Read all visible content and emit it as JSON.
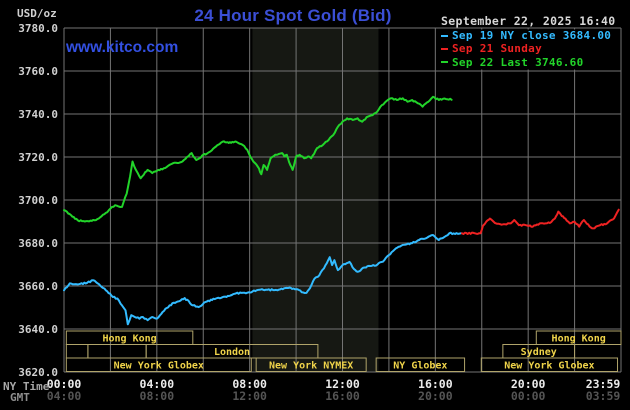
{
  "header": {
    "title": "24 Hour Spot Gold (Bid)",
    "watermark": "www.kitco.com",
    "timestamp": "September 22, 2025 16:40",
    "unit_label": "USD/oz"
  },
  "colors": {
    "background": "#000000",
    "title_blue": "#3b4fd6",
    "watermark_blue": "#3350e2",
    "timestamp_gray": "#d8d8d8",
    "grid_gray": "#747474",
    "nymex_band": "#161813",
    "session_border": "#b0a46a",
    "session_text": "#f0d44a",
    "prev_close_cyan": "#33bbff",
    "sunday_red": "#ee2222",
    "last_green": "#22d42a"
  },
  "legend": {
    "items": [
      {
        "text": "Sep 19 NY close 3684.00",
        "color": "#33bbff"
      },
      {
        "text": "Sep 21 Sunday",
        "color": "#ee2222"
      },
      {
        "text": "Sep 22 Last 3746.60",
        "color": "#22d42a"
      }
    ]
  },
  "axes": {
    "y_unit": "USD/oz",
    "y_tick_labels": [
      "3780.0",
      "3760.0",
      "3740.0",
      "3720.0",
      "3700.0",
      "3680.0",
      "3660.0",
      "3640.0",
      "3620.0"
    ],
    "ny_time_label": "NY Time",
    "ny_time_ticks": [
      "00:00",
      "04:00",
      "08:00",
      "12:00",
      "16:00",
      "20:00",
      "23:59"
    ],
    "gmt_label": "GMT",
    "gmt_ticks": [
      "04:00",
      "08:00",
      "12:00",
      "16:00",
      "20:00",
      "00:00",
      "03:59"
    ]
  },
  "sessions": [
    {
      "row": 0,
      "label": "Hong Kong",
      "start": 0.1,
      "end": 5.55
    },
    {
      "row": 0,
      "label": "Hong Kong",
      "start": 20.35,
      "end": 24.0
    },
    {
      "row": 1,
      "label": "",
      "start": 0.1,
      "end": 1.03
    },
    {
      "row": 1,
      "label": "",
      "start": 1.03,
      "end": 3.54
    },
    {
      "row": 1,
      "label": "London",
      "start": 3.54,
      "end": 10.94
    },
    {
      "row": 1,
      "label": "Sydney",
      "start": 18.91,
      "end": 22.0
    },
    {
      "row": 2,
      "label": "New York Globex",
      "start": 0.1,
      "end": 8.07
    },
    {
      "row": 2,
      "label": "New York NYMEX",
      "start": 8.28,
      "end": 13.02
    },
    {
      "row": 2,
      "label": "NY Globex",
      "start": 13.45,
      "end": 17.26
    },
    {
      "row": 2,
      "label": "New York Globex",
      "start": 17.98,
      "end": 23.85
    }
  ],
  "chart_data": {
    "type": "line",
    "title": "24 Hour Spot Gold (Bid)",
    "xlabel": "NY Time",
    "ylabel": "USD/oz",
    "xlim_hours": [
      0,
      24
    ],
    "ylim": [
      3620,
      3780
    ],
    "y_tick_step": 20,
    "x_gridline_step_hours": 2,
    "grid": true,
    "legend_position": "top-right",
    "nymex_band_hours": [
      8.12,
      13.55
    ],
    "series": [
      {
        "name": "Sep 19 NY close 3684.00",
        "color": "#33bbff",
        "points": [
          [
            0.0,
            3658
          ],
          [
            0.25,
            3661.2
          ],
          [
            0.7,
            3661
          ],
          [
            1.0,
            3661.5
          ],
          [
            1.25,
            3662.7
          ],
          [
            1.45,
            3661.2
          ],
          [
            1.8,
            3658
          ],
          [
            2.1,
            3654.9
          ],
          [
            2.3,
            3654.2
          ],
          [
            2.5,
            3651
          ],
          [
            2.65,
            3648.7
          ],
          [
            2.75,
            3642.2
          ],
          [
            2.9,
            3646.4
          ],
          [
            3.05,
            3645.6
          ],
          [
            3.25,
            3644.8
          ],
          [
            3.4,
            3645.6
          ],
          [
            3.6,
            3644.1
          ],
          [
            3.8,
            3645.6
          ],
          [
            4.0,
            3644.8
          ],
          [
            4.25,
            3647.9
          ],
          [
            4.55,
            3651
          ],
          [
            4.85,
            3652.6
          ],
          [
            5.2,
            3654.4
          ],
          [
            5.55,
            3651
          ],
          [
            5.8,
            3650.2
          ],
          [
            6.1,
            3652.6
          ],
          [
            6.55,
            3654.2
          ],
          [
            7.0,
            3654.9
          ],
          [
            7.4,
            3656.5
          ],
          [
            7.9,
            3656.9
          ],
          [
            8.3,
            3658
          ],
          [
            8.7,
            3658.3
          ],
          [
            9.2,
            3658
          ],
          [
            9.6,
            3659.1
          ],
          [
            10.0,
            3658.5
          ],
          [
            10.3,
            3657
          ],
          [
            10.45,
            3656.8
          ],
          [
            10.6,
            3659
          ],
          [
            10.8,
            3663.5
          ],
          [
            11.0,
            3665
          ],
          [
            11.2,
            3668.2
          ],
          [
            11.45,
            3673.4
          ],
          [
            11.55,
            3669.7
          ],
          [
            11.65,
            3672
          ],
          [
            11.8,
            3667.4
          ],
          [
            12.0,
            3669.7
          ],
          [
            12.3,
            3671.2
          ],
          [
            12.5,
            3667.8
          ],
          [
            12.65,
            3666.6
          ],
          [
            12.95,
            3668.6
          ],
          [
            13.2,
            3669.3
          ],
          [
            13.5,
            3669.9
          ],
          [
            13.8,
            3672
          ],
          [
            14.0,
            3674.4
          ],
          [
            14.3,
            3677.5
          ],
          [
            14.6,
            3679.1
          ],
          [
            15.0,
            3679.9
          ],
          [
            15.3,
            3681.4
          ],
          [
            15.6,
            3682.2
          ],
          [
            15.9,
            3683.7
          ],
          [
            16.15,
            3681.4
          ],
          [
            16.4,
            3682.9
          ],
          [
            16.6,
            3684.5
          ],
          [
            17.1,
            3684.5
          ]
        ]
      },
      {
        "name": "Sep 21 Sunday",
        "color": "#ee2222",
        "points": [
          [
            17.15,
            3684.5
          ],
          [
            17.95,
            3684.5
          ],
          [
            18.05,
            3688
          ],
          [
            18.2,
            3690
          ],
          [
            18.35,
            3691.4
          ],
          [
            18.5,
            3690
          ],
          [
            18.65,
            3689
          ],
          [
            18.85,
            3688.5
          ],
          [
            19.0,
            3688.7
          ],
          [
            19.25,
            3689.1
          ],
          [
            19.4,
            3690.7
          ],
          [
            19.6,
            3688.3
          ],
          [
            19.9,
            3688.3
          ],
          [
            20.2,
            3687.6
          ],
          [
            20.5,
            3689.1
          ],
          [
            20.75,
            3689.1
          ],
          [
            21.0,
            3689.8
          ],
          [
            21.15,
            3691.4
          ],
          [
            21.3,
            3694.6
          ],
          [
            21.45,
            3692.5
          ],
          [
            21.6,
            3691.4
          ],
          [
            21.8,
            3689.1
          ],
          [
            22.0,
            3689.8
          ],
          [
            22.2,
            3687.6
          ],
          [
            22.4,
            3690.7
          ],
          [
            22.65,
            3687.6
          ],
          [
            22.8,
            3686.8
          ],
          [
            23.1,
            3688.3
          ],
          [
            23.4,
            3689.1
          ],
          [
            23.7,
            3691.4
          ],
          [
            23.9,
            3695.5
          ]
        ]
      },
      {
        "name": "Sep 22 Last 3746.60",
        "color": "#22d42a",
        "points": [
          [
            0.0,
            3695.3
          ],
          [
            0.3,
            3693
          ],
          [
            0.6,
            3690.5
          ],
          [
            0.9,
            3690
          ],
          [
            1.2,
            3690.3
          ],
          [
            1.5,
            3691.4
          ],
          [
            1.8,
            3694
          ],
          [
            2.0,
            3696
          ],
          [
            2.2,
            3697.6
          ],
          [
            2.35,
            3697
          ],
          [
            2.5,
            3696.8
          ],
          [
            2.7,
            3703
          ],
          [
            2.85,
            3711
          ],
          [
            2.95,
            3717.9
          ],
          [
            3.1,
            3714
          ],
          [
            3.3,
            3710.1
          ],
          [
            3.5,
            3713
          ],
          [
            3.6,
            3714
          ],
          [
            3.8,
            3712.5
          ],
          [
            4.0,
            3713.5
          ],
          [
            4.3,
            3714.8
          ],
          [
            4.5,
            3716
          ],
          [
            4.7,
            3717.1
          ],
          [
            5.0,
            3717.5
          ],
          [
            5.1,
            3717.9
          ],
          [
            5.3,
            3720
          ],
          [
            5.5,
            3721.8
          ],
          [
            5.7,
            3718.6
          ],
          [
            5.85,
            3719.5
          ],
          [
            6.0,
            3721
          ],
          [
            6.15,
            3721.5
          ],
          [
            6.3,
            3722.5
          ],
          [
            6.55,
            3724.9
          ],
          [
            6.7,
            3726
          ],
          [
            6.85,
            3727.2
          ],
          [
            7.0,
            3726.8
          ],
          [
            7.1,
            3726.5
          ],
          [
            7.25,
            3727
          ],
          [
            7.4,
            3727.2
          ],
          [
            7.55,
            3726.3
          ],
          [
            7.7,
            3725.6
          ],
          [
            7.9,
            3723.3
          ],
          [
            8.1,
            3719
          ],
          [
            8.35,
            3715.5
          ],
          [
            8.5,
            3712
          ],
          [
            8.6,
            3716.3
          ],
          [
            8.75,
            3714
          ],
          [
            8.9,
            3719.4
          ],
          [
            9.1,
            3721
          ],
          [
            9.25,
            3721.4
          ],
          [
            9.4,
            3721.8
          ],
          [
            9.5,
            3720.2
          ],
          [
            9.6,
            3721
          ],
          [
            9.75,
            3716.3
          ],
          [
            9.85,
            3714
          ],
          [
            10.0,
            3720.2
          ],
          [
            10.15,
            3721
          ],
          [
            10.35,
            3719.4
          ],
          [
            10.5,
            3720.2
          ],
          [
            10.65,
            3719.4
          ],
          [
            10.9,
            3724.1
          ],
          [
            11.15,
            3725.6
          ],
          [
            11.4,
            3727.9
          ],
          [
            11.6,
            3730.2
          ],
          [
            11.8,
            3734.1
          ],
          [
            12.0,
            3736.4
          ],
          [
            12.2,
            3738
          ],
          [
            12.45,
            3737.2
          ],
          [
            12.65,
            3738
          ],
          [
            12.85,
            3736.4
          ],
          [
            13.1,
            3738.8
          ],
          [
            13.3,
            3739.5
          ],
          [
            13.5,
            3741.1
          ],
          [
            13.7,
            3744.2
          ],
          [
            13.95,
            3746.5
          ],
          [
            14.15,
            3747.3
          ],
          [
            14.35,
            3746.5
          ],
          [
            14.6,
            3747.3
          ],
          [
            14.8,
            3745.7
          ],
          [
            15.0,
            3746.5
          ],
          [
            15.25,
            3745
          ],
          [
            15.45,
            3743.4
          ],
          [
            15.7,
            3745.7
          ],
          [
            15.9,
            3748
          ],
          [
            16.15,
            3746.5
          ],
          [
            16.4,
            3747.2
          ],
          [
            16.7,
            3746.6
          ]
        ]
      }
    ]
  }
}
